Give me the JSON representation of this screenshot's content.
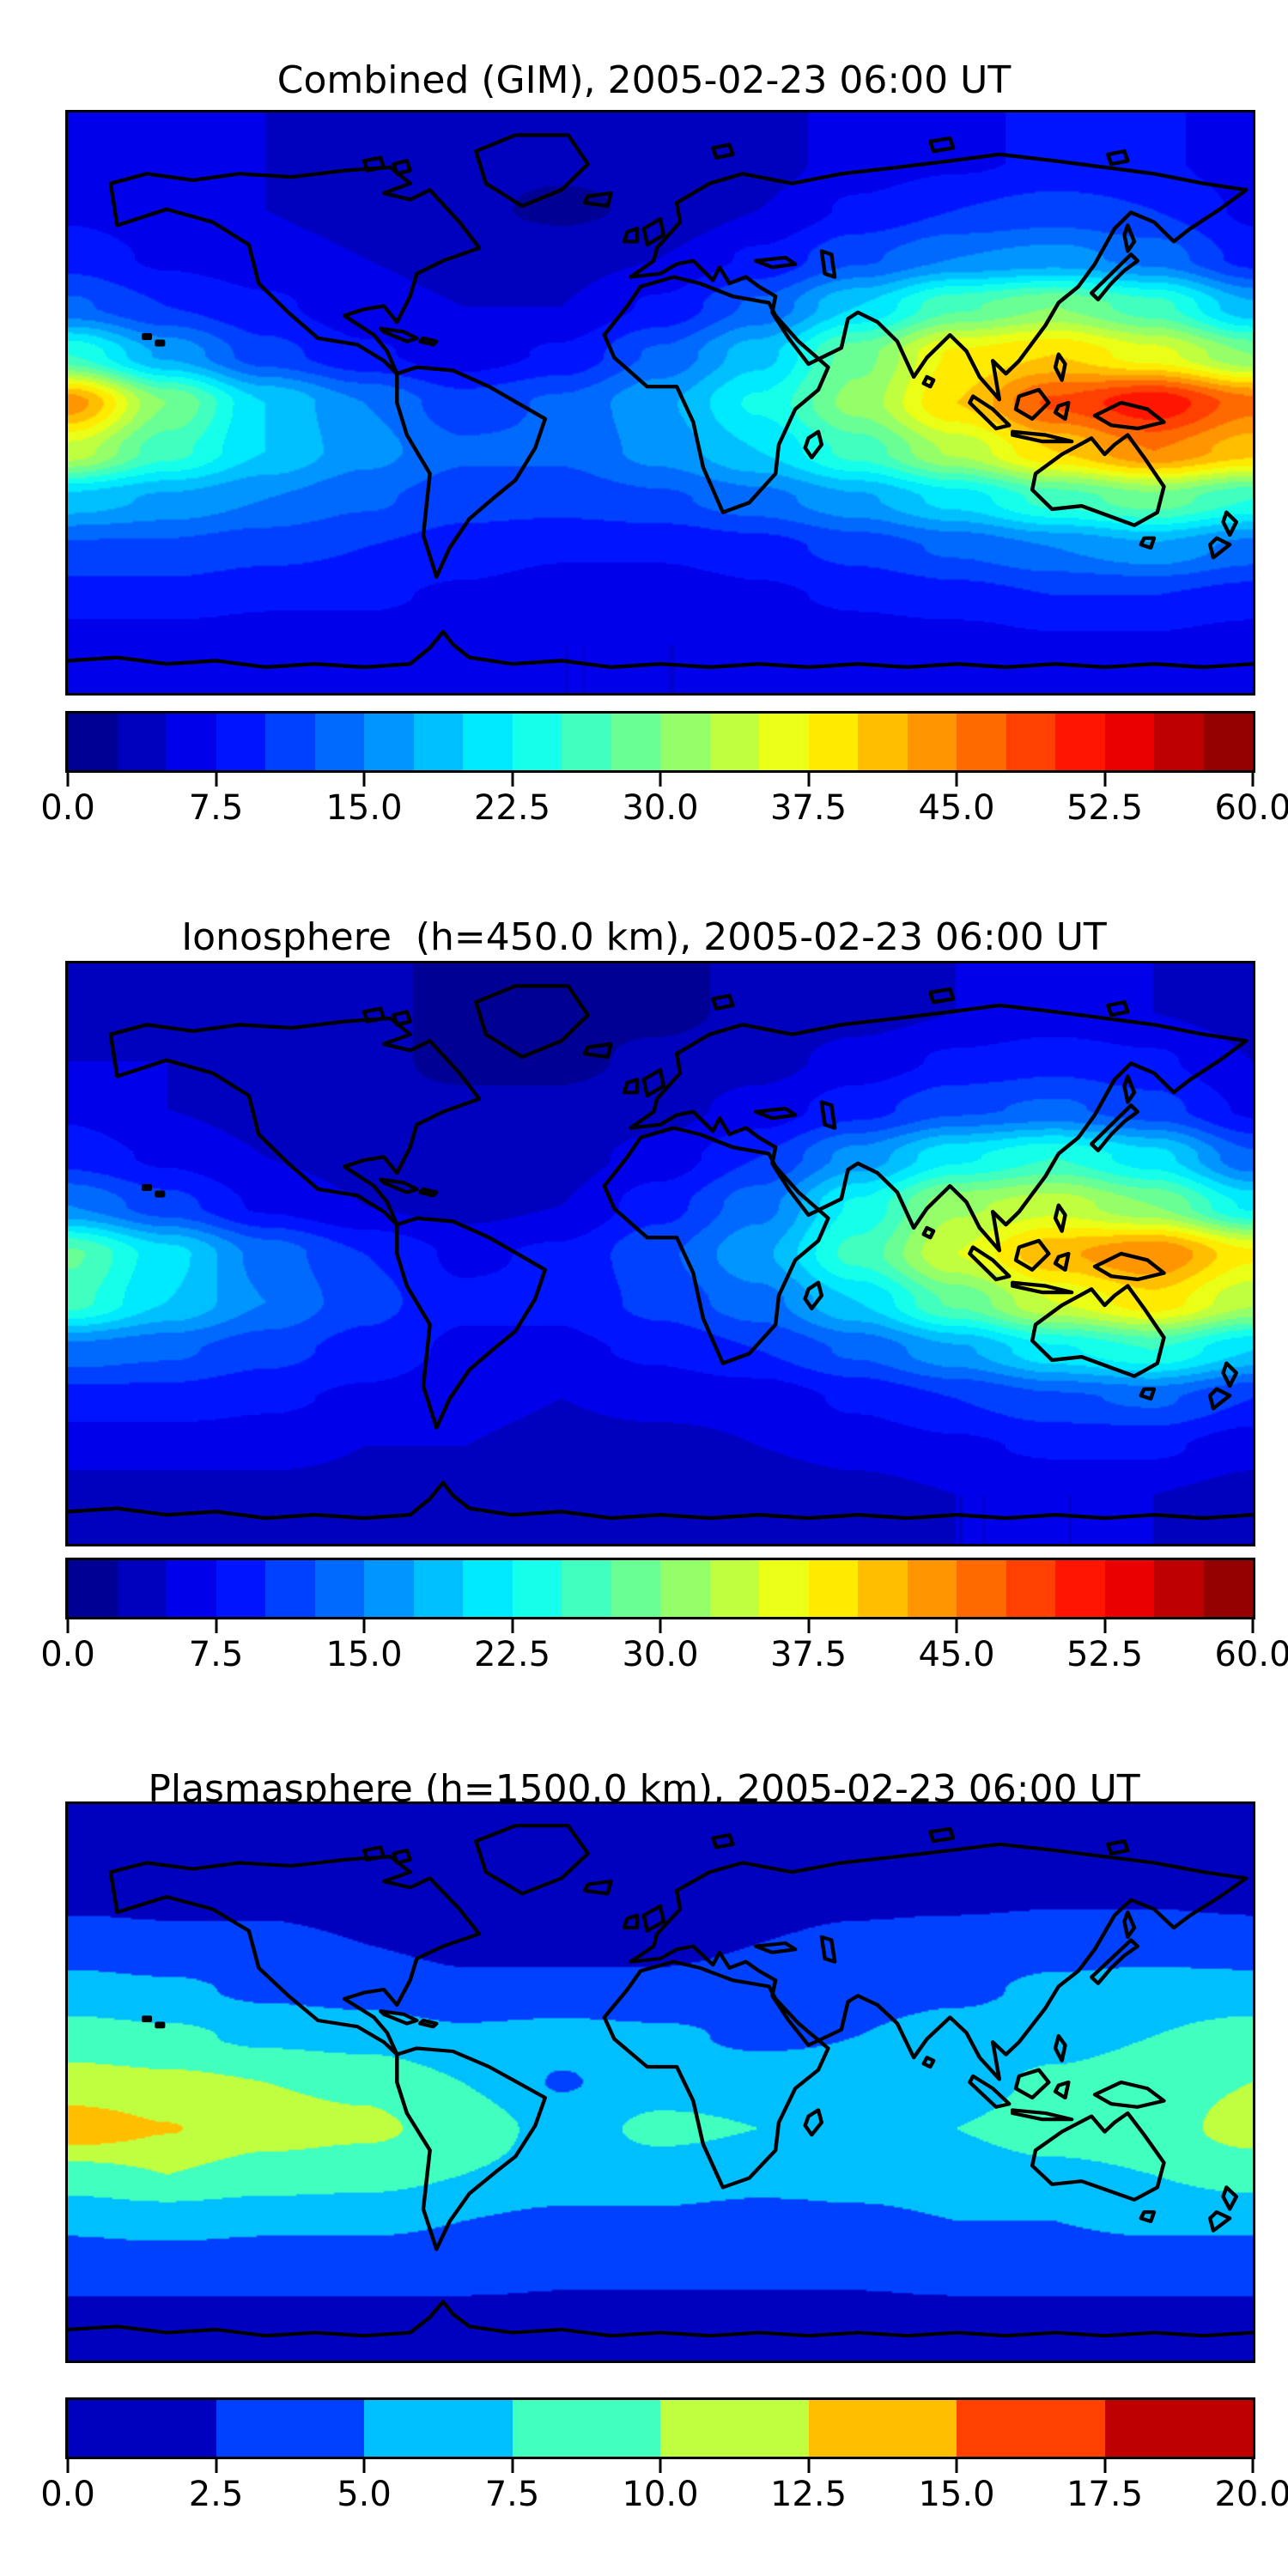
{
  "figure": {
    "background": "#ffffff",
    "colormap": "jet",
    "coastline_color": "#000000"
  },
  "chart_data": [
    {
      "type": "heatmap",
      "title": "Combined (GIM), 2005-02-23 06:00 UT",
      "projection": "equirectangular world map, lon -180..180, lat 90..-90",
      "grid_on": false,
      "legend_position": "colorbar below",
      "colorbar": {
        "vmin": 0,
        "vmax": 60,
        "levels": 24,
        "tick_labels": [
          "0.0",
          "7.5",
          "15.0",
          "22.5",
          "30.0",
          "37.5",
          "45.0",
          "52.5",
          "60.0"
        ],
        "colors": [
          "#000095",
          "#0000bf",
          "#0000ea",
          "#0015ff",
          "#0040ff",
          "#006aff",
          "#0095ff",
          "#00bfff",
          "#00eaff",
          "#15ffea",
          "#40ffbf",
          "#6aff95",
          "#95ff6a",
          "#bfff40",
          "#eaff15",
          "#ffea00",
          "#ffbf00",
          "#ff9500",
          "#ff6a00",
          "#ff4000",
          "#ff1500",
          "#ea0000",
          "#bf0000",
          "#950000"
        ]
      },
      "grid": {
        "lons": [
          -180,
          -150,
          -120,
          -90,
          -60,
          -30,
          0,
          30,
          60,
          90,
          120,
          150,
          180
        ],
        "lats": [
          90,
          75,
          60,
          45,
          30,
          15,
          0,
          -15,
          -30,
          -45,
          -60,
          -75,
          -90
        ],
        "values": [
          [
            6,
            6,
            5,
            4,
            3,
            3,
            3,
            4,
            6,
            7,
            8,
            8,
            6
          ],
          [
            6,
            6,
            5,
            4,
            3,
            3,
            3,
            4,
            6,
            7,
            8,
            8,
            6
          ],
          [
            7,
            6,
            5,
            4,
            3,
            2,
            3,
            5,
            8,
            10,
            11,
            10,
            7
          ],
          [
            9,
            7,
            6,
            5,
            4,
            4,
            5,
            8,
            12,
            15,
            16,
            14,
            9
          ],
          [
            13,
            10,
            8,
            6,
            5,
            5,
            8,
            13,
            20,
            27,
            30,
            26,
            18
          ],
          [
            25,
            17,
            11,
            8,
            6,
            8,
            13,
            19,
            29,
            38,
            40,
            36,
            30
          ],
          [
            44,
            30,
            20,
            15,
            11,
            13,
            17,
            23,
            31,
            40,
            48,
            52,
            46
          ],
          [
            34,
            26,
            20,
            16,
            13,
            13,
            16,
            20,
            26,
            33,
            40,
            45,
            41
          ],
          [
            19,
            17,
            15,
            13,
            11,
            11,
            12,
            14,
            17,
            21,
            26,
            29,
            25
          ],
          [
            12,
            12,
            11,
            10,
            9,
            8,
            8,
            9,
            11,
            13,
            15,
            17,
            14
          ],
          [
            9,
            9,
            8,
            8,
            7,
            6,
            6,
            7,
            8,
            9,
            10,
            10,
            9
          ],
          [
            6,
            6,
            6,
            6,
            5,
            5,
            5,
            5,
            6,
            6,
            7,
            7,
            6
          ],
          [
            6,
            6,
            6,
            6,
            5,
            5,
            5,
            5,
            6,
            6,
            7,
            7,
            6
          ]
        ]
      }
    },
    {
      "type": "heatmap",
      "title": "Ionosphere  (h=450.0 km), 2005-02-23 06:00 UT",
      "projection": "equirectangular world map, lon -180..180, lat 90..-90",
      "grid_on": false,
      "legend_position": "colorbar below",
      "colorbar": {
        "vmin": 0,
        "vmax": 60,
        "levels": 24,
        "tick_labels": [
          "0.0",
          "7.5",
          "15.0",
          "22.5",
          "30.0",
          "37.5",
          "45.0",
          "52.5",
          "60.0"
        ],
        "colors": [
          "#000095",
          "#0000bf",
          "#0000ea",
          "#0015ff",
          "#0040ff",
          "#006aff",
          "#0095ff",
          "#00bfff",
          "#00eaff",
          "#15ffea",
          "#40ffbf",
          "#6aff95",
          "#95ff6a",
          "#bfff40",
          "#eaff15",
          "#ffea00",
          "#ffbf00",
          "#ff9500",
          "#ff6a00",
          "#ff4000",
          "#ff1500",
          "#ea0000",
          "#bf0000",
          "#950000"
        ]
      },
      "grid": {
        "lons": [
          -180,
          -150,
          -120,
          -90,
          -60,
          -30,
          0,
          30,
          60,
          90,
          120,
          150,
          180
        ],
        "lats": [
          90,
          75,
          60,
          45,
          30,
          15,
          0,
          -15,
          -30,
          -45,
          -60,
          -75,
          -90
        ],
        "values": [
          [
            4,
            4,
            3,
            3,
            2,
            2,
            2,
            3,
            4,
            5,
            6,
            5,
            4
          ],
          [
            4,
            4,
            3,
            3,
            2,
            2,
            2,
            3,
            4,
            5,
            6,
            5,
            4
          ],
          [
            5,
            5,
            4,
            3,
            2,
            2,
            3,
            4,
            6,
            8,
            9,
            8,
            5
          ],
          [
            7,
            5,
            4,
            3,
            3,
            3,
            4,
            6,
            9,
            12,
            13,
            11,
            7
          ],
          [
            9,
            7,
            5,
            4,
            3,
            4,
            6,
            10,
            16,
            22,
            25,
            21,
            13
          ],
          [
            15,
            11,
            7,
            5,
            4,
            5,
            9,
            14,
            23,
            32,
            34,
            30,
            22
          ],
          [
            28,
            21,
            14,
            10,
            7,
            8,
            12,
            17,
            26,
            35,
            42,
            45,
            38
          ],
          [
            26,
            20,
            15,
            11,
            8,
            8,
            11,
            14,
            20,
            28,
            35,
            39,
            33
          ],
          [
            14,
            13,
            11,
            9,
            7,
            7,
            8,
            10,
            13,
            17,
            22,
            25,
            20
          ],
          [
            9,
            9,
            8,
            7,
            6,
            5,
            6,
            6,
            8,
            10,
            12,
            13,
            10
          ],
          [
            6,
            6,
            6,
            5,
            5,
            4,
            4,
            5,
            6,
            7,
            8,
            8,
            6
          ],
          [
            4,
            4,
            4,
            4,
            3,
            3,
            3,
            3,
            4,
            5,
            5,
            5,
            4
          ],
          [
            4,
            4,
            4,
            4,
            3,
            3,
            3,
            3,
            4,
            5,
            5,
            5,
            4
          ]
        ]
      }
    },
    {
      "type": "heatmap",
      "title": "Plasmasphere (h=1500.0 km), 2005-02-23 06:00 UT",
      "projection": "equirectangular world map, lon -180..180, lat 90..-90",
      "grid_on": false,
      "legend_position": "colorbar below",
      "colorbar": {
        "vmin": 0,
        "vmax": 20,
        "levels": 8,
        "tick_labels": [
          "0.0",
          "2.5",
          "5.0",
          "7.5",
          "10.0",
          "12.5",
          "15.0",
          "17.5",
          "20.0"
        ],
        "colors": [
          "#0000bf",
          "#0040ff",
          "#00bfff",
          "#40ffbf",
          "#bfff40",
          "#ffbf00",
          "#ff4000",
          "#bf0000"
        ]
      },
      "grid": {
        "lons": [
          -180,
          -150,
          -120,
          -90,
          -60,
          -30,
          0,
          30,
          60,
          90,
          120,
          150,
          180
        ],
        "lats": [
          90,
          75,
          60,
          45,
          30,
          15,
          0,
          -15,
          -30,
          -45,
          -60,
          -75,
          -90
        ],
        "values": [
          [
            1.5,
            1.5,
            1.2,
            1,
            1,
            1,
            1,
            1,
            1.2,
            1.5,
            1.5,
            1.5,
            1.5
          ],
          [
            1.5,
            1.5,
            1.2,
            1,
            1,
            1,
            1,
            1,
            1.2,
            1.5,
            1.5,
            1.5,
            1.5
          ],
          [
            2,
            2,
            2,
            1.5,
            1.2,
            1.2,
            1.3,
            1.5,
            2,
            2,
            2.2,
            2.2,
            2
          ],
          [
            3.5,
            3,
            3,
            2.5,
            2,
            2,
            2,
            2.5,
            3,
            3.5,
            4,
            4,
            3.5
          ],
          [
            6,
            5.5,
            4.5,
            4,
            3,
            3,
            3,
            3.5,
            4,
            4.5,
            5.5,
            6,
            6
          ],
          [
            8.5,
            8,
            7,
            6.5,
            5.5,
            6,
            5.5,
            4.5,
            5,
            6,
            6.5,
            7.5,
            8.5
          ],
          [
            11,
            10.5,
            10,
            9.5,
            7.5,
            4.8,
            6.5,
            6.5,
            6,
            6.5,
            8,
            9,
            10
          ],
          [
            14,
            12.6,
            11,
            10.5,
            9,
            6.5,
            8,
            7.5,
            7,
            7.5,
            8.5,
            9,
            11
          ],
          [
            9,
            10,
            9,
            8.5,
            7.5,
            6.5,
            6.5,
            6,
            6,
            6.5,
            7,
            7.5,
            8.5
          ],
          [
            5.5,
            6,
            5.5,
            5.5,
            5,
            4.5,
            4.5,
            4,
            4.5,
            5,
            5,
            5.5,
            5.5
          ],
          [
            3.5,
            3.5,
            3.5,
            3.5,
            3.5,
            3,
            3,
            3,
            3,
            3.5,
            3.5,
            3.5,
            3.5
          ],
          [
            2,
            2,
            2,
            2,
            2,
            2,
            2,
            2,
            2,
            2,
            2,
            2,
            2
          ],
          [
            2,
            2,
            2,
            2,
            2,
            2,
            2,
            2,
            2,
            2,
            2,
            2,
            2
          ]
        ]
      }
    }
  ]
}
